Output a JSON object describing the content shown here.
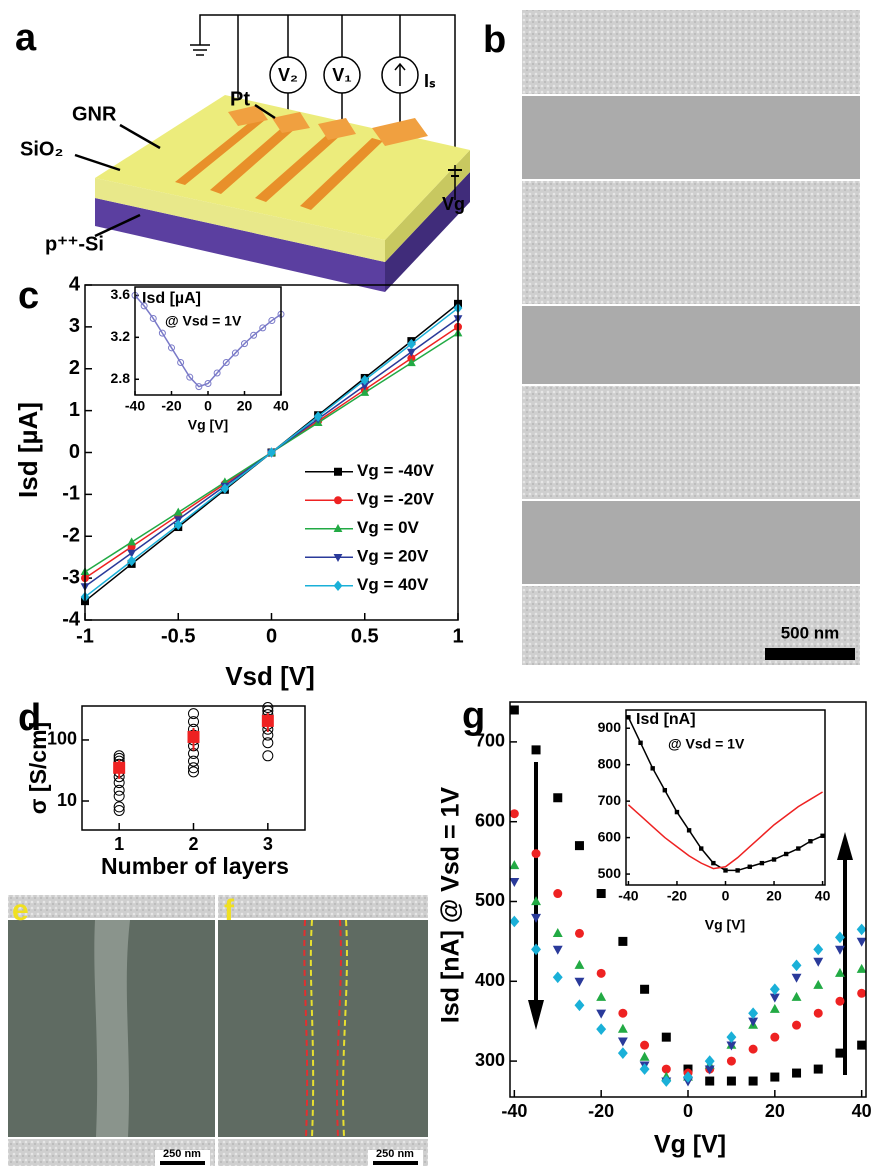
{
  "panel_labels": [
    "a",
    "b",
    "c",
    "d",
    "e",
    "f",
    "g"
  ],
  "schematic": {
    "pt": "Pt",
    "gnr": "GNR",
    "oxide": "SiO₂",
    "substrate": "p⁺⁺-Si",
    "meter_1": "V₂",
    "meter_2": "V₁",
    "source": "Iₛ",
    "gate": "Vg"
  },
  "scale_bars": [
    "500 nm",
    "250 nm",
    "250 nm"
  ],
  "chart_data": [
    {
      "type": "line",
      "xlabel": "Vsd [V]",
      "ylabel": "Isd [µA]",
      "x": [
        -1,
        -0.75,
        -0.5,
        -0.25,
        0,
        0.25,
        0.5,
        0.75,
        1
      ],
      "xlim": [
        -1,
        1
      ],
      "xticks": [
        -1,
        -0.5,
        0,
        0.5,
        1
      ],
      "ylim": [
        -4,
        4
      ],
      "yticks": [
        -4,
        -3,
        -2,
        -1,
        0,
        1,
        2,
        3,
        4
      ],
      "legend": "lower right",
      "series": [
        {
          "name": "Vg = -40V",
          "color": "#000000",
          "marker": "square",
          "values": [
            -3.55,
            -2.66,
            -1.78,
            -0.89,
            0,
            0.89,
            1.78,
            2.66,
            3.55
          ]
        },
        {
          "name": "Vg = -20V",
          "color": "#ee2222",
          "marker": "circle",
          "values": [
            -3.0,
            -2.25,
            -1.5,
            -0.75,
            0,
            0.75,
            1.5,
            2.25,
            3.0
          ]
        },
        {
          "name": "Vg = 0V",
          "color": "#22aa44",
          "marker": "triangle",
          "values": [
            -2.85,
            -2.14,
            -1.43,
            -0.71,
            0,
            0.71,
            1.43,
            2.14,
            2.85
          ]
        },
        {
          "name": "Vg = 20V",
          "color": "#2a3a9a",
          "marker": "down-triangle",
          "values": [
            -3.2,
            -2.4,
            -1.6,
            -0.8,
            0,
            0.8,
            1.6,
            2.4,
            3.2
          ]
        },
        {
          "name": "Vg = 40V",
          "color": "#1ab0d8",
          "marker": "diamond",
          "values": [
            -3.45,
            -2.59,
            -1.73,
            -0.86,
            0,
            0.86,
            1.73,
            2.59,
            3.45
          ]
        }
      ]
    },
    {
      "type": "line",
      "xlabel": "Vg [V]",
      "ylabel": "Isd [µA]",
      "annotation": "@ Vsd = 1V",
      "x": [
        -40,
        -35,
        -30,
        -25,
        -20,
        -15,
        -10,
        -5,
        0,
        5,
        10,
        15,
        20,
        25,
        30,
        35,
        40
      ],
      "values": [
        3.6,
        3.5,
        3.38,
        3.24,
        3.1,
        2.96,
        2.82,
        2.73,
        2.76,
        2.86,
        2.96,
        3.05,
        3.14,
        3.22,
        3.29,
        3.36,
        3.42
      ],
      "color": "#7a7ac8",
      "marker": "circle",
      "marker_fill": "none",
      "xlim": [
        -40,
        40
      ],
      "xticks": [
        -40,
        -20,
        0,
        20,
        40
      ],
      "ylim": [
        2.65,
        3.68
      ],
      "yticks": [
        2.8,
        3.2,
        3.6
      ]
    },
    {
      "type": "scatter",
      "xlabel": "Number of layers",
      "ylabel": "σ [S/cm]",
      "yscale": "log",
      "x": [
        1,
        1,
        1,
        1,
        1,
        1,
        1,
        1,
        1,
        1,
        1,
        1,
        2,
        2,
        2,
        2,
        2,
        2,
        2,
        2,
        2,
        2,
        3,
        3,
        3,
        3,
        3,
        3,
        3,
        3,
        3
      ],
      "values": [
        55,
        50,
        45,
        40,
        35,
        30,
        25,
        20,
        15,
        12,
        8,
        7,
        270,
        200,
        150,
        120,
        100,
        80,
        60,
        45,
        35,
        30,
        340,
        300,
        260,
        220,
        180,
        150,
        120,
        90,
        55
      ],
      "color": "#000000",
      "marker": "circle",
      "marker_fill": "none",
      "mean_x": [
        1,
        2,
        3
      ],
      "mean_values": [
        35,
        112,
        205
      ],
      "mean_errors": [
        12,
        45,
        70
      ],
      "mean_color": "#ee2222",
      "xlim": [
        0.5,
        3.5
      ],
      "xticks": [
        1,
        2,
        3
      ],
      "ylim": [
        3.35,
        360
      ],
      "yticks": [
        10,
        100
      ]
    },
    {
      "type": "scatter",
      "xlabel": "Vg [V]",
      "ylabel": "Isd [nA] @ Vsd = 1V",
      "x": [
        -40,
        -35,
        -30,
        -25,
        -20,
        -15,
        -10,
        -5,
        0,
        5,
        10,
        15,
        20,
        25,
        30,
        35,
        40
      ],
      "xlim": [
        -41,
        41
      ],
      "xticks": [
        -40,
        -20,
        0,
        20,
        40
      ],
      "ylim": [
        255,
        750
      ],
      "yticks": [
        300,
        400,
        500,
        600,
        700
      ],
      "series": [
        {
          "color": "#000000",
          "marker": "square",
          "values": [
            740,
            690,
            630,
            570,
            510,
            450,
            390,
            330,
            290,
            275,
            275,
            275,
            280,
            285,
            290,
            310,
            320
          ]
        },
        {
          "color": "#ee2222",
          "marker": "circle",
          "values": [
            610,
            560,
            510,
            460,
            410,
            360,
            320,
            290,
            285,
            290,
            300,
            315,
            330,
            345,
            360,
            375,
            385
          ]
        },
        {
          "color": "#22aa44",
          "marker": "triangle",
          "values": [
            545,
            500,
            460,
            420,
            380,
            340,
            305,
            280,
            280,
            295,
            320,
            345,
            365,
            380,
            395,
            410,
            415
          ]
        },
        {
          "color": "#2a3a9a",
          "marker": "down-triangle",
          "values": [
            525,
            480,
            440,
            400,
            360,
            325,
            295,
            275,
            275,
            290,
            320,
            350,
            380,
            405,
            425,
            440,
            450
          ]
        },
        {
          "color": "#1ab0d8",
          "marker": "diamond",
          "values": [
            475,
            440,
            405,
            370,
            340,
            310,
            290,
            275,
            280,
            300,
            330,
            360,
            390,
            420,
            440,
            455,
            465
          ]
        }
      ]
    },
    {
      "type": "line",
      "xlabel": "Vg [V]",
      "ylabel": "Isd [nA]",
      "annotation": "@ Vsd = 1V",
      "x": [
        -40,
        -35,
        -30,
        -25,
        -20,
        -15,
        -10,
        -5,
        0,
        5,
        10,
        15,
        20,
        25,
        30,
        35,
        40
      ],
      "xlim": [
        -41,
        41
      ],
      "xticks": [
        -40,
        -20,
        0,
        20,
        40
      ],
      "ylim": [
        470,
        950
      ],
      "yticks": [
        500,
        600,
        700,
        800,
        900
      ],
      "series": [
        {
          "color": "#000000",
          "marker": "square",
          "values": [
            930,
            860,
            790,
            730,
            670,
            620,
            570,
            530,
            510,
            510,
            520,
            530,
            540,
            555,
            570,
            590,
            605
          ]
        },
        {
          "color": "#ee2222",
          "marker": "none",
          "values": [
            690,
            660,
            630,
            600,
            575,
            550,
            530,
            515,
            520,
            545,
            575,
            605,
            635,
            660,
            685,
            705,
            725
          ]
        }
      ]
    }
  ]
}
